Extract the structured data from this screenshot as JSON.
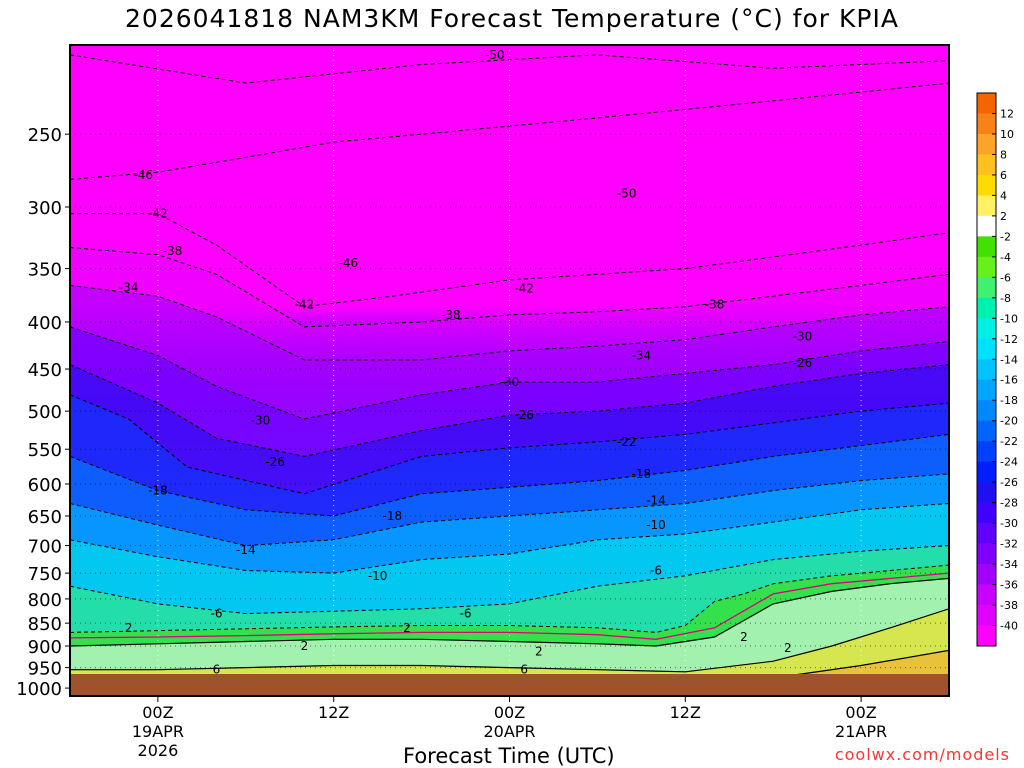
{
  "title": "2026041818 NAM3KM Forecast Temperature (°C) for KPIA",
  "credit": "coolwx.com/models",
  "chart_data": {
    "type": "heatmap",
    "title": "2026041818 NAM3KM Forecast Temperature (°C) for KPIA",
    "xlabel": "Forecast Time (UTC)",
    "ylabel": "",
    "y_log_scale": true,
    "y_inverted": true,
    "y_ticks": [
      250,
      300,
      350,
      400,
      450,
      500,
      550,
      600,
      650,
      700,
      750,
      800,
      850,
      900,
      950,
      1000
    ],
    "x_ticks": [
      {
        "hour": 6,
        "lines": [
          "00Z",
          "19APR",
          "2026"
        ]
      },
      {
        "hour": 18,
        "lines": [
          "12Z",
          "",
          ""
        ]
      },
      {
        "hour": 30,
        "lines": [
          "00Z",
          "20APR",
          ""
        ]
      },
      {
        "hour": 42,
        "lines": [
          "12Z",
          "",
          ""
        ]
      },
      {
        "hour": 54,
        "lines": [
          "00Z",
          "21APR",
          ""
        ]
      }
    ],
    "xlim": [
      0,
      60
    ],
    "ylim": [
      1020,
      200
    ],
    "grid": true,
    "colorbar": {
      "position": "right",
      "ticks": [
        12,
        10,
        8,
        6,
        4,
        2,
        -2,
        -4,
        -6,
        -8,
        -10,
        -12,
        -14,
        -16,
        -18,
        -20,
        -22,
        -24,
        -26,
        -28,
        -30,
        -32,
        -34,
        -36,
        -38,
        -40
      ],
      "colors": [
        "#f46400",
        "#f8821a",
        "#fca428",
        "#ffc020",
        "#ffdc00",
        "#fff064",
        "#ffffff",
        "#44e100",
        "#66f01e",
        "#40f070",
        "#00f0b0",
        "#00f0e6",
        "#00e0ff",
        "#00c4ff",
        "#00a6ff",
        "#0088ff",
        "#0064ff",
        "#0040ff",
        "#001eff",
        "#1e10f0",
        "#4000ff",
        "#6000ff",
        "#8000ff",
        "#a000ff",
        "#c800ff",
        "#e100ff",
        "#ff00ff"
      ]
    },
    "isotherms": [
      {
        "temp": -50,
        "points": [
          [
            0,
            205
          ],
          [
            12,
            220
          ],
          [
            24,
            210
          ],
          [
            36,
            205
          ],
          [
            48,
            212
          ],
          [
            60,
            208
          ]
        ]
      },
      {
        "temp": -46,
        "points": [
          [
            0,
            280
          ],
          [
            6,
            275
          ],
          [
            12,
            265
          ],
          [
            18,
            255
          ],
          [
            24,
            250
          ],
          [
            30,
            245
          ],
          [
            36,
            240
          ],
          [
            42,
            235
          ],
          [
            48,
            230
          ],
          [
            54,
            225
          ],
          [
            60,
            220
          ]
        ]
      },
      {
        "temp": -42,
        "points": [
          [
            0,
            305
          ],
          [
            6,
            305
          ],
          [
            10,
            330
          ],
          [
            16,
            385
          ],
          [
            22,
            375
          ],
          [
            30,
            360
          ],
          [
            36,
            355
          ],
          [
            42,
            350
          ],
          [
            48,
            340
          ],
          [
            54,
            330
          ],
          [
            60,
            320
          ]
        ]
      },
      {
        "temp": -38,
        "points": [
          [
            0,
            332
          ],
          [
            6,
            338
          ],
          [
            10,
            355
          ],
          [
            16,
            405
          ],
          [
            24,
            400
          ],
          [
            30,
            393
          ],
          [
            36,
            390
          ],
          [
            42,
            385
          ],
          [
            48,
            375
          ],
          [
            54,
            365
          ],
          [
            60,
            355
          ]
        ]
      },
      {
        "temp": -34,
        "points": [
          [
            0,
            365
          ],
          [
            6,
            375
          ],
          [
            10,
            395
          ],
          [
            16,
            440
          ],
          [
            24,
            440
          ],
          [
            30,
            430
          ],
          [
            36,
            425
          ],
          [
            42,
            418
          ],
          [
            48,
            405
          ],
          [
            54,
            393
          ],
          [
            60,
            385
          ]
        ]
      },
      {
        "temp": -30,
        "points": [
          [
            0,
            405
          ],
          [
            6,
            435
          ],
          [
            10,
            470
          ],
          [
            16,
            510
          ],
          [
            24,
            480
          ],
          [
            30,
            465
          ],
          [
            36,
            465
          ],
          [
            42,
            455
          ],
          [
            48,
            445
          ],
          [
            54,
            430
          ],
          [
            60,
            420
          ]
        ]
      },
      {
        "temp": -26,
        "points": [
          [
            0,
            445
          ],
          [
            6,
            490
          ],
          [
            10,
            535
          ],
          [
            16,
            560
          ],
          [
            24,
            525
          ],
          [
            30,
            505
          ],
          [
            36,
            500
          ],
          [
            42,
            490
          ],
          [
            48,
            470
          ],
          [
            54,
            455
          ],
          [
            60,
            445
          ]
        ]
      },
      {
        "temp": -22,
        "points": [
          [
            0,
            480
          ],
          [
            4,
            510
          ],
          [
            8,
            575
          ],
          [
            16,
            615
          ],
          [
            24,
            560
          ],
          [
            30,
            548
          ],
          [
            36,
            540
          ],
          [
            42,
            530
          ],
          [
            48,
            515
          ],
          [
            54,
            500
          ],
          [
            60,
            490
          ]
        ]
      },
      {
        "temp": -18,
        "points": [
          [
            0,
            560
          ],
          [
            6,
            610
          ],
          [
            12,
            640
          ],
          [
            18,
            650
          ],
          [
            24,
            615
          ],
          [
            30,
            605
          ],
          [
            36,
            595
          ],
          [
            42,
            580
          ],
          [
            48,
            560
          ],
          [
            54,
            545
          ],
          [
            60,
            530
          ]
        ]
      },
      {
        "temp": -14,
        "points": [
          [
            0,
            630
          ],
          [
            6,
            665
          ],
          [
            12,
            700
          ],
          [
            18,
            690
          ],
          [
            24,
            660
          ],
          [
            30,
            650
          ],
          [
            36,
            640
          ],
          [
            42,
            630
          ],
          [
            48,
            610
          ],
          [
            54,
            595
          ],
          [
            60,
            585
          ]
        ]
      },
      {
        "temp": -10,
        "points": [
          [
            0,
            690
          ],
          [
            6,
            720
          ],
          [
            12,
            745
          ],
          [
            18,
            750
          ],
          [
            24,
            725
          ],
          [
            30,
            715
          ],
          [
            36,
            690
          ],
          [
            42,
            680
          ],
          [
            48,
            660
          ],
          [
            54,
            640
          ],
          [
            60,
            630
          ]
        ]
      },
      {
        "temp": -6,
        "points": [
          [
            0,
            775
          ],
          [
            6,
            810
          ],
          [
            12,
            830
          ],
          [
            18,
            825
          ],
          [
            24,
            820
          ],
          [
            30,
            810
          ],
          [
            36,
            775
          ],
          [
            42,
            755
          ],
          [
            48,
            725
          ],
          [
            54,
            710
          ],
          [
            60,
            700
          ]
        ]
      },
      {
        "temp": -2,
        "points": [
          [
            0,
            870
          ],
          [
            6,
            866
          ],
          [
            12,
            862
          ],
          [
            18,
            858
          ],
          [
            24,
            855
          ],
          [
            30,
            855
          ],
          [
            36,
            860
          ],
          [
            40,
            870
          ],
          [
            42,
            855
          ],
          [
            44,
            805
          ],
          [
            46,
            790
          ],
          [
            48,
            770
          ],
          [
            52,
            755
          ],
          [
            56,
            745
          ],
          [
            60,
            735
          ]
        ]
      },
      {
        "temp": 0,
        "magenta": true,
        "points": [
          [
            0,
            882
          ],
          [
            6,
            880
          ],
          [
            12,
            877
          ],
          [
            18,
            873
          ],
          [
            24,
            870
          ],
          [
            30,
            870
          ],
          [
            36,
            875
          ],
          [
            40,
            885
          ],
          [
            44,
            860
          ],
          [
            48,
            790
          ],
          [
            52,
            770
          ],
          [
            56,
            760
          ],
          [
            60,
            750
          ]
        ]
      },
      {
        "temp": 2,
        "points": [
          [
            0,
            900
          ],
          [
            6,
            895
          ],
          [
            12,
            890
          ],
          [
            18,
            885
          ],
          [
            24,
            885
          ],
          [
            30,
            890
          ],
          [
            36,
            895
          ],
          [
            40,
            900
          ],
          [
            44,
            880
          ],
          [
            48,
            810
          ],
          [
            52,
            785
          ],
          [
            56,
            770
          ],
          [
            60,
            760
          ]
        ]
      },
      {
        "temp": 6,
        "points": [
          [
            0,
            955
          ],
          [
            6,
            955
          ],
          [
            12,
            950
          ],
          [
            18,
            945
          ],
          [
            24,
            945
          ],
          [
            30,
            950
          ],
          [
            36,
            955
          ],
          [
            42,
            960
          ],
          [
            48,
            935
          ],
          [
            52,
            900
          ],
          [
            56,
            860
          ],
          [
            60,
            820
          ]
        ]
      },
      {
        "temp": 10,
        "points": [
          [
            0,
            995
          ],
          [
            12,
            985
          ],
          [
            24,
            980
          ],
          [
            36,
            990
          ],
          [
            48,
            975
          ],
          [
            54,
            945
          ],
          [
            60,
            910
          ]
        ]
      }
    ],
    "contour_labels": [
      {
        "text": "-50",
        "hour": 29,
        "p": 205
      },
      {
        "text": "-50",
        "hour": 38,
        "p": 290
      },
      {
        "text": "-46",
        "hour": 5,
        "p": 277
      },
      {
        "text": "-46",
        "hour": 19,
        "p": 345
      },
      {
        "text": "-42",
        "hour": 6,
        "p": 305
      },
      {
        "text": "-42",
        "hour": 16,
        "p": 383
      },
      {
        "text": "-42",
        "hour": 31,
        "p": 368
      },
      {
        "text": "-38",
        "hour": 7,
        "p": 335
      },
      {
        "text": "-38",
        "hour": 26,
        "p": 393
      },
      {
        "text": "-38",
        "hour": 44,
        "p": 383
      },
      {
        "text": "-34",
        "hour": 4,
        "p": 367
      },
      {
        "text": "-34",
        "hour": 39,
        "p": 435
      },
      {
        "text": "-30",
        "hour": 13,
        "p": 512
      },
      {
        "text": "-30",
        "hour": 30,
        "p": 465
      },
      {
        "text": "-30",
        "hour": 50,
        "p": 415
      },
      {
        "text": "-26",
        "hour": 14,
        "p": 568
      },
      {
        "text": "-26",
        "hour": 31,
        "p": 505
      },
      {
        "text": "-26",
        "hour": 50,
        "p": 443
      },
      {
        "text": "-22",
        "hour": 38,
        "p": 540
      },
      {
        "text": "-18",
        "hour": 6,
        "p": 610
      },
      {
        "text": "-18",
        "hour": 22,
        "p": 650
      },
      {
        "text": "-18",
        "hour": 39,
        "p": 585
      },
      {
        "text": "-14",
        "hour": 12,
        "p": 708
      },
      {
        "text": "-14",
        "hour": 40,
        "p": 625
      },
      {
        "text": "-10",
        "hour": 21,
        "p": 755
      },
      {
        "text": "-10",
        "hour": 40,
        "p": 665
      },
      {
        "text": "-6",
        "hour": 10,
        "p": 830
      },
      {
        "text": "-6",
        "hour": 27,
        "p": 830
      },
      {
        "text": "-6",
        "hour": 40,
        "p": 745
      },
      {
        "text": "2",
        "hour": 4,
        "p": 860
      },
      {
        "text": "2",
        "hour": 23,
        "p": 860
      },
      {
        "text": "2",
        "hour": 16,
        "p": 900
      },
      {
        "text": "2",
        "hour": 32,
        "p": 912
      },
      {
        "text": "2",
        "hour": 46,
        "p": 880
      },
      {
        "text": "2",
        "hour": 49,
        "p": 905
      },
      {
        "text": "6",
        "hour": 10,
        "p": 955
      },
      {
        "text": "6",
        "hour": 31,
        "p": 955
      }
    ]
  }
}
